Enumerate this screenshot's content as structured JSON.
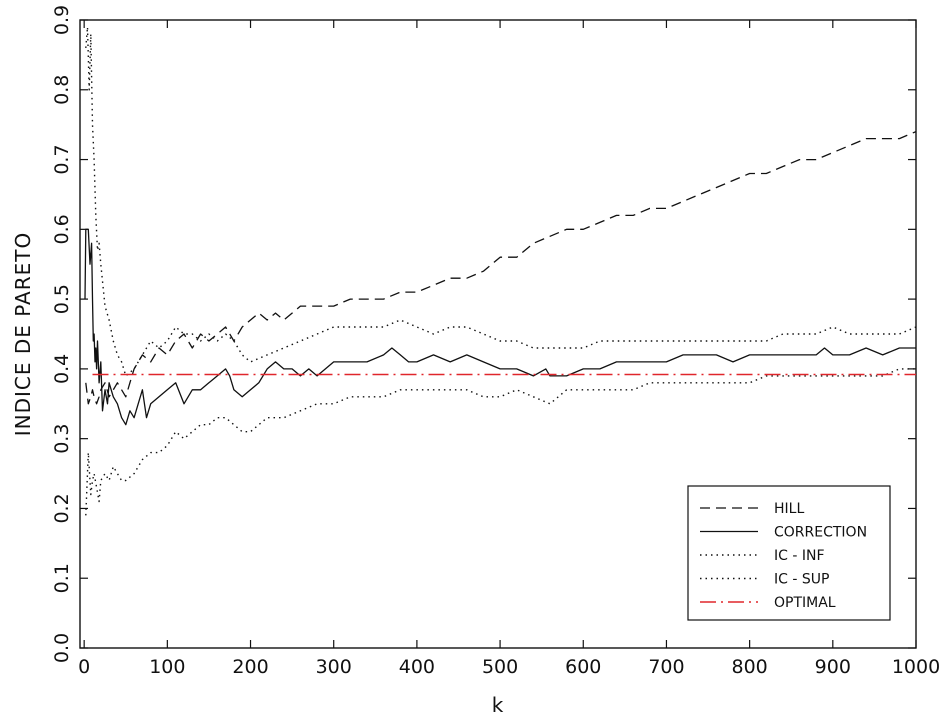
{
  "chart_data": {
    "type": "line",
    "title": "",
    "xlabel": "k",
    "ylabel": "INDICE DE PARETO",
    "xlim": [
      -5,
      1000
    ],
    "ylim": [
      0,
      0.9
    ],
    "xticks": [
      0,
      100,
      200,
      300,
      400,
      500,
      600,
      700,
      800,
      900,
      1000
    ],
    "yticks": [
      0.0,
      0.1,
      0.2,
      0.3,
      0.4,
      0.5,
      0.6,
      0.7,
      0.8,
      0.9
    ],
    "xtick_labels": [
      "0",
      "100",
      "200",
      "300",
      "400",
      "500",
      "600",
      "700",
      "800",
      "900",
      "1000"
    ],
    "ytick_labels": [
      "0.0",
      "0.1",
      "0.2",
      "0.3",
      "0.4",
      "0.5",
      "0.6",
      "0.7",
      "0.8",
      "0.9"
    ],
    "grid": false,
    "legend_position": "bottom-right",
    "series": [
      {
        "name": "HILL",
        "style": "dashed",
        "color": "#111111",
        "x": [
          2,
          5,
          8,
          10,
          12,
          15,
          18,
          20,
          25,
          30,
          35,
          40,
          45,
          50,
          55,
          60,
          70,
          80,
          90,
          100,
          110,
          120,
          130,
          140,
          150,
          160,
          170,
          180,
          190,
          200,
          210,
          220,
          230,
          240,
          250,
          260,
          280,
          300,
          320,
          340,
          360,
          380,
          400,
          420,
          440,
          460,
          480,
          500,
          520,
          540,
          560,
          580,
          600,
          620,
          640,
          660,
          680,
          700,
          720,
          740,
          760,
          780,
          800,
          820,
          840,
          860,
          880,
          900,
          920,
          940,
          960,
          980,
          1000
        ],
        "y": [
          0.38,
          0.35,
          0.36,
          0.37,
          0.36,
          0.35,
          0.36,
          0.37,
          0.38,
          0.36,
          0.37,
          0.38,
          0.37,
          0.36,
          0.38,
          0.4,
          0.42,
          0.41,
          0.43,
          0.42,
          0.44,
          0.45,
          0.43,
          0.45,
          0.44,
          0.45,
          0.46,
          0.44,
          0.46,
          0.47,
          0.48,
          0.47,
          0.48,
          0.47,
          0.48,
          0.49,
          0.49,
          0.49,
          0.5,
          0.5,
          0.5,
          0.51,
          0.51,
          0.52,
          0.53,
          0.53,
          0.54,
          0.56,
          0.56,
          0.58,
          0.59,
          0.6,
          0.6,
          0.61,
          0.62,
          0.62,
          0.63,
          0.63,
          0.64,
          0.65,
          0.66,
          0.67,
          0.68,
          0.68,
          0.69,
          0.7,
          0.7,
          0.71,
          0.72,
          0.73,
          0.73,
          0.73,
          0.74
        ]
      },
      {
        "name": "CORRECTION",
        "style": "solid",
        "color": "#111111",
        "x": [
          1,
          2,
          3,
          5,
          7,
          9,
          10,
          11,
          12,
          13,
          14,
          15,
          16,
          18,
          20,
          22,
          25,
          28,
          30,
          35,
          40,
          45,
          50,
          55,
          60,
          65,
          70,
          75,
          80,
          90,
          100,
          110,
          120,
          130,
          140,
          150,
          160,
          170,
          175,
          180,
          190,
          200,
          210,
          220,
          230,
          240,
          250,
          260,
          270,
          280,
          290,
          300,
          320,
          340,
          360,
          370,
          380,
          390,
          400,
          420,
          440,
          460,
          480,
          500,
          520,
          540,
          555,
          560,
          570,
          580,
          600,
          620,
          640,
          660,
          680,
          700,
          720,
          740,
          760,
          780,
          800,
          820,
          840,
          860,
          880,
          890,
          900,
          920,
          940,
          960,
          980,
          1000
        ],
        "y": [
          0.5,
          0.6,
          0.6,
          0.6,
          0.55,
          0.58,
          0.5,
          0.44,
          0.45,
          0.41,
          0.43,
          0.4,
          0.44,
          0.38,
          0.41,
          0.34,
          0.37,
          0.35,
          0.38,
          0.36,
          0.35,
          0.33,
          0.32,
          0.34,
          0.33,
          0.35,
          0.37,
          0.33,
          0.35,
          0.36,
          0.37,
          0.38,
          0.35,
          0.37,
          0.37,
          0.38,
          0.39,
          0.4,
          0.39,
          0.37,
          0.36,
          0.37,
          0.38,
          0.4,
          0.41,
          0.4,
          0.4,
          0.39,
          0.4,
          0.39,
          0.4,
          0.41,
          0.41,
          0.41,
          0.42,
          0.43,
          0.42,
          0.41,
          0.41,
          0.42,
          0.41,
          0.42,
          0.41,
          0.4,
          0.4,
          0.39,
          0.4,
          0.39,
          0.39,
          0.39,
          0.4,
          0.4,
          0.41,
          0.41,
          0.41,
          0.41,
          0.42,
          0.42,
          0.42,
          0.41,
          0.42,
          0.42,
          0.42,
          0.42,
          0.42,
          0.43,
          0.42,
          0.42,
          0.43,
          0.42,
          0.43,
          0.43
        ]
      },
      {
        "name": "IC - INF",
        "style": "dotted",
        "color": "#111111",
        "x": [
          2,
          5,
          8,
          10,
          12,
          15,
          18,
          20,
          25,
          30,
          35,
          40,
          45,
          50,
          60,
          70,
          80,
          90,
          100,
          110,
          120,
          130,
          140,
          150,
          160,
          170,
          180,
          190,
          200,
          220,
          240,
          260,
          280,
          300,
          320,
          340,
          360,
          380,
          400,
          420,
          440,
          460,
          480,
          500,
          520,
          540,
          560,
          580,
          600,
          620,
          640,
          660,
          680,
          700,
          720,
          740,
          760,
          780,
          800,
          820,
          840,
          860,
          880,
          900,
          920,
          940,
          960,
          980,
          1000
        ],
        "y": [
          0.19,
          0.28,
          0.22,
          0.24,
          0.25,
          0.23,
          0.21,
          0.24,
          0.25,
          0.24,
          0.26,
          0.25,
          0.24,
          0.24,
          0.25,
          0.27,
          0.28,
          0.28,
          0.29,
          0.31,
          0.3,
          0.31,
          0.32,
          0.32,
          0.33,
          0.33,
          0.32,
          0.31,
          0.31,
          0.33,
          0.33,
          0.34,
          0.35,
          0.35,
          0.36,
          0.36,
          0.36,
          0.37,
          0.37,
          0.37,
          0.37,
          0.37,
          0.36,
          0.36,
          0.37,
          0.36,
          0.35,
          0.37,
          0.37,
          0.37,
          0.37,
          0.37,
          0.38,
          0.38,
          0.38,
          0.38,
          0.38,
          0.38,
          0.38,
          0.39,
          0.39,
          0.39,
          0.39,
          0.39,
          0.39,
          0.39,
          0.39,
          0.4,
          0.4
        ]
      },
      {
        "name": "IC - SUP",
        "style": "dotted",
        "color": "#111111",
        "x": [
          2,
          4,
          6,
          8,
          10,
          12,
          14,
          16,
          18,
          20,
          25,
          30,
          35,
          40,
          45,
          50,
          60,
          70,
          80,
          90,
          100,
          110,
          120,
          130,
          140,
          150,
          160,
          170,
          180,
          190,
          200,
          220,
          240,
          260,
          280,
          300,
          320,
          340,
          360,
          380,
          400,
          420,
          440,
          460,
          480,
          500,
          520,
          540,
          560,
          580,
          600,
          620,
          640,
          660,
          680,
          700,
          720,
          740,
          760,
          780,
          800,
          820,
          840,
          860,
          880,
          900,
          920,
          940,
          960,
          980,
          1000
        ],
        "y": [
          0.86,
          0.89,
          0.8,
          0.88,
          0.75,
          0.7,
          0.62,
          0.57,
          0.58,
          0.55,
          0.49,
          0.47,
          0.44,
          0.42,
          0.41,
          0.39,
          0.4,
          0.42,
          0.44,
          0.43,
          0.44,
          0.46,
          0.45,
          0.45,
          0.44,
          0.45,
          0.44,
          0.45,
          0.44,
          0.42,
          0.41,
          0.42,
          0.43,
          0.44,
          0.45,
          0.46,
          0.46,
          0.46,
          0.46,
          0.47,
          0.46,
          0.45,
          0.46,
          0.46,
          0.45,
          0.44,
          0.44,
          0.43,
          0.43,
          0.43,
          0.43,
          0.44,
          0.44,
          0.44,
          0.44,
          0.44,
          0.44,
          0.44,
          0.44,
          0.44,
          0.44,
          0.44,
          0.45,
          0.45,
          0.45,
          0.46,
          0.45,
          0.45,
          0.45,
          0.45,
          0.46
        ]
      },
      {
        "name": "OPTIMAL",
        "style": "dash-dot",
        "color": "#e0262b",
        "x": [
          10,
          1000
        ],
        "y": [
          0.392,
          0.392
        ]
      }
    ]
  }
}
